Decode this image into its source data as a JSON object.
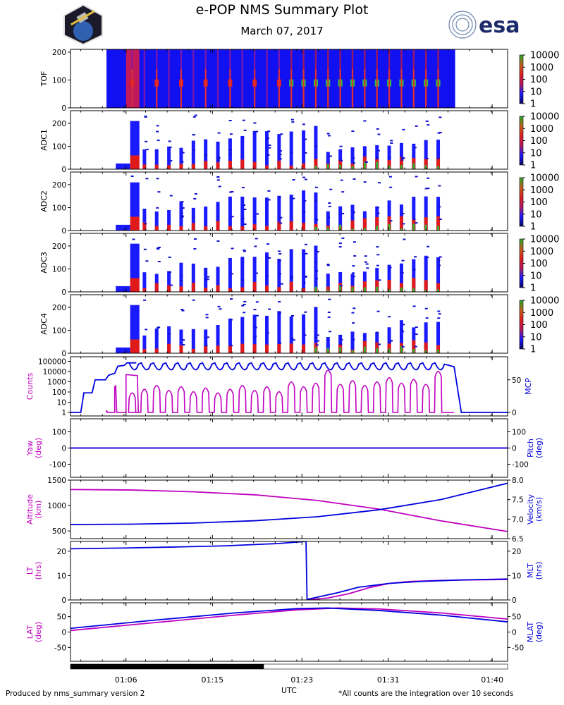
{
  "title": "e-POP NMS Summary Plot",
  "subtitle": "March 07, 2017",
  "logos": {
    "left": "e-POP mission patch (satellite over Earth)",
    "right_text": "esa"
  },
  "footer": {
    "left": "Produced by nms_summary version 2",
    "right": "*All counts are the integration over 10 seconds"
  },
  "colors": {
    "left_axis": "#c000c0",
    "right_axis": "#0000dd",
    "spectro_bg": "#1010f0"
  },
  "chart_data": [
    {
      "type": "heatmap",
      "panel": "TOF",
      "ylabel": "TOF",
      "ylim": [
        0,
        210
      ],
      "yticks": [
        0,
        100,
        200
      ],
      "colorbar": {
        "labels": [
          "1",
          "10",
          "100",
          "1000",
          "10000"
        ],
        "colors": [
          "#0a0a80",
          "#1a1aff",
          "#cc1a1a",
          "#e08020",
          "#22aa22"
        ]
      }
    },
    {
      "type": "heatmap",
      "panel": "ADC1",
      "ylabel": "ADC1",
      "ylim": [
        0,
        255
      ],
      "yticks": [
        0,
        100,
        200
      ],
      "colorbar": {
        "labels": [
          "1",
          "10",
          "100",
          "1000",
          "10000"
        ]
      }
    },
    {
      "type": "heatmap",
      "panel": "ADC2",
      "ylabel": "ADC2",
      "ylim": [
        0,
        255
      ],
      "yticks": [
        0,
        100,
        200
      ],
      "colorbar": {
        "labels": [
          "1",
          "10",
          "100",
          "1000",
          "10000"
        ]
      }
    },
    {
      "type": "heatmap",
      "panel": "ADC3",
      "ylabel": "ADC3",
      "ylim": [
        0,
        255
      ],
      "yticks": [
        0,
        100,
        200
      ],
      "colorbar": {
        "labels": [
          "1",
          "10",
          "100",
          "1000",
          "10000"
        ]
      }
    },
    {
      "type": "heatmap",
      "panel": "ADC4",
      "ylabel": "ADC4",
      "ylim": [
        0,
        255
      ],
      "yticks": [
        0,
        100,
        200
      ],
      "colorbar": {
        "labels": [
          "1",
          "10",
          "100",
          "1000",
          "10000"
        ]
      }
    },
    {
      "type": "line",
      "panel": "Counts/MCP",
      "ylabel": "Counts",
      "ylabel_right": "MCP",
      "yticks_left": [
        "1",
        "10",
        "100",
        "1000",
        "10000",
        "100000"
      ],
      "yticks_right": [
        "0",
        "50"
      ],
      "series": [
        {
          "name": "Counts",
          "axis": "left",
          "color": "#c000c0",
          "description": "log10 counts, periodic peaks 1e3-1e4 from 01:04 to 01:37"
        },
        {
          "name": "MCP",
          "axis": "right",
          "color": "#0000dd",
          "description": "0 to ~75 while instrument on, oscillating 60-77"
        }
      ],
      "mcp_levels": {
        "off": 0,
        "step1": 30,
        "step2": 50,
        "plateau": 75
      }
    },
    {
      "type": "line",
      "panel": "Yaw/Pitch",
      "ylabel": "Yaw\n(deg)",
      "ylabel_right": "Pitch\n(deg)",
      "ylim": [
        -180,
        180
      ],
      "yticks": [
        -100,
        0,
        100
      ],
      "series": [
        {
          "name": "Yaw",
          "axis": "left",
          "color": "#c000c0",
          "values": [
            0,
            0
          ]
        },
        {
          "name": "Pitch",
          "axis": "right",
          "color": "#0000dd",
          "values": [
            0,
            0
          ]
        }
      ]
    },
    {
      "type": "line",
      "panel": "Altitude/Velocity",
      "ylabel": "Altitude\n(km)",
      "ylabel_right": "Velocity\n(km/s)",
      "ylim_left": [
        350,
        1500
      ],
      "yticks_left": [
        500,
        1000,
        1500
      ],
      "ylim_right": [
        6.5,
        8.0
      ],
      "yticks_right": [
        "6.5",
        "7.0",
        "7.5",
        "8.0"
      ],
      "series": [
        {
          "name": "Altitude",
          "axis": "left",
          "color": "#c000c0",
          "x": [
            0,
            6,
            12,
            18,
            24,
            30,
            36,
            42.5
          ],
          "values": [
            1315,
            1305,
            1270,
            1210,
            1100,
            930,
            700,
            490
          ]
        },
        {
          "name": "Velocity",
          "axis": "right",
          "color": "#0000dd",
          "x": [
            0,
            6,
            12,
            18,
            24,
            30,
            36,
            42.5
          ],
          "values": [
            6.86,
            6.87,
            6.9,
            6.96,
            7.06,
            7.24,
            7.5,
            7.92
          ]
        }
      ]
    },
    {
      "type": "line",
      "panel": "LT/MLT",
      "ylabel": "LT\n(hrs)",
      "ylabel_right": "MLT\n(hrs)",
      "ylim": [
        0,
        24
      ],
      "yticks": [
        0,
        10,
        20
      ],
      "series": [
        {
          "name": "LT",
          "axis": "left",
          "color": "#c000c0",
          "x": [
            23.0,
            25,
            27,
            29,
            31,
            33,
            36,
            40,
            42.5
          ],
          "values": [
            0,
            0.8,
            2.5,
            5.0,
            6.8,
            7.6,
            8.0,
            8.3,
            8.4
          ]
        },
        {
          "name": "MLT",
          "axis": "right",
          "color": "#0000dd",
          "x": [
            0,
            5,
            10,
            15,
            20,
            22.9,
            23.0,
            26,
            28,
            31,
            34,
            38,
            42.5
          ],
          "values": [
            21.0,
            21.3,
            21.7,
            22.2,
            23.1,
            24.0,
            0.2,
            3.0,
            5.2,
            6.8,
            7.6,
            8.2,
            8.6
          ]
        }
      ]
    },
    {
      "type": "line",
      "panel": "LAT/MLAT",
      "ylabel": "LAT\n(deg)",
      "ylabel_right": "MLAT\n(deg)",
      "ylim": [
        -95,
        95
      ],
      "yticks": [
        -50,
        0,
        50
      ],
      "series": [
        {
          "name": "LAT",
          "axis": "left",
          "color": "#c000c0",
          "x": [
            0,
            8,
            16,
            22,
            26,
            30,
            36,
            42.5
          ],
          "values": [
            5,
            30,
            55,
            72,
            78,
            75,
            62,
            42
          ]
        },
        {
          "name": "MLAT",
          "axis": "right",
          "color": "#0000dd",
          "x": [
            0,
            8,
            16,
            22,
            25,
            30,
            36,
            42.5
          ],
          "values": [
            12,
            38,
            62,
            76,
            78,
            70,
            55,
            33
          ]
        }
      ]
    }
  ],
  "x_axis": {
    "label": "UTC",
    "range_minutes": [
      0,
      42.5
    ],
    "ticks": [
      {
        "label": "01:06",
        "minute": 5.4
      },
      {
        "label": "01:15",
        "minute": 13.8
      },
      {
        "label": "01:23",
        "minute": 22.5
      },
      {
        "label": "01:31",
        "minute": 30.9
      },
      {
        "label": "01:40",
        "minute": 41.0
      }
    ],
    "data_coverage": {
      "start_minute": 0,
      "end_minute": 18.8
    }
  }
}
